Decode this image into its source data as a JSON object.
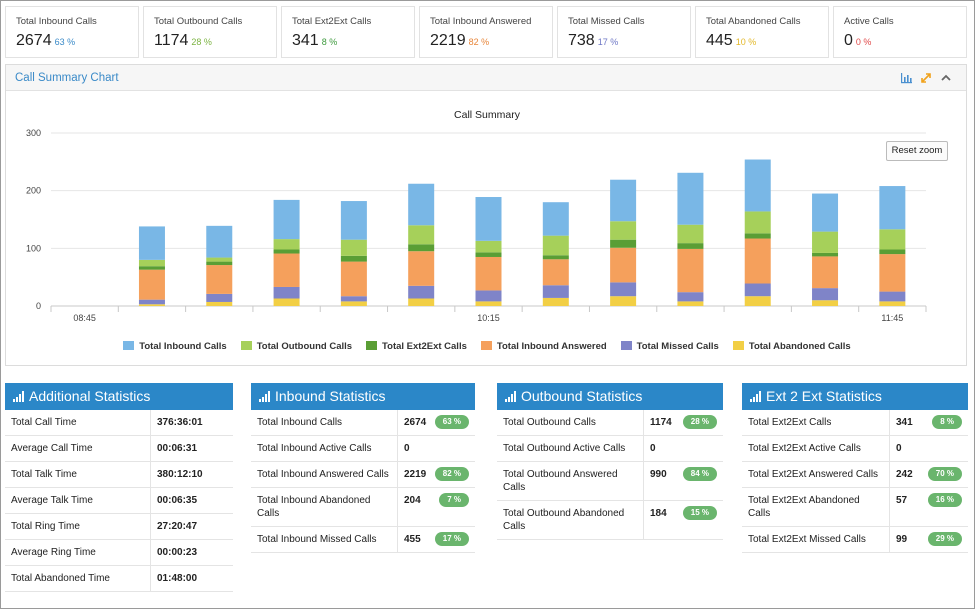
{
  "kpis": [
    {
      "title": "Total Inbound Calls",
      "value": "2674",
      "pct": "63 %",
      "color": "#3a8ac8"
    },
    {
      "title": "Total Outbound Calls",
      "value": "1174",
      "pct": "28 %",
      "color": "#7cb342"
    },
    {
      "title": "Total Ext2Ext Calls",
      "value": "341",
      "pct": "8 %",
      "color": "#3d9a3d"
    },
    {
      "title": "Total Inbound Answered",
      "value": "2219",
      "pct": "82 %",
      "color": "#e8863a"
    },
    {
      "title": "Total Missed Calls",
      "value": "738",
      "pct": "17 %",
      "color": "#6f78c6"
    },
    {
      "title": "Total Abandoned Calls",
      "value": "445",
      "pct": "10 %",
      "color": "#e3b828"
    },
    {
      "title": "Active Calls",
      "value": "0",
      "pct": "0 %",
      "color": "#e04848"
    }
  ],
  "panel": {
    "title": "Call Summary Chart",
    "reset_label": "Reset zoom",
    "tool_icons": [
      "bar-chart-icon",
      "expand-icon",
      "collapse-icon"
    ]
  },
  "chart_data": {
    "type": "bar",
    "stacked": true,
    "title": "Call Summary",
    "y_ticks": [
      "0",
      "100",
      "200",
      "300"
    ],
    "ylim": [
      0,
      300
    ],
    "x_tick_labels": [
      {
        "label": "08:45",
        "slot": 0
      },
      {
        "label": "10:15",
        "slot": 6
      },
      {
        "label": "11:45",
        "slot": 12
      }
    ],
    "categories": [
      "08:45",
      "",
      "",
      "",
      "",
      "",
      "10:15",
      "",
      "",
      "",
      "",
      "",
      "11:45"
    ],
    "series": [
      {
        "name": "Total Abandoned Calls",
        "color": "#f2cf45",
        "values": [
          0,
          3,
          7,
          13,
          8,
          13,
          8,
          14,
          17,
          8,
          17,
          10,
          8
        ]
      },
      {
        "name": "Total Missed Calls",
        "color": "#7f84c8",
        "values": [
          0,
          8,
          14,
          20,
          9,
          22,
          19,
          22,
          24,
          16,
          22,
          21,
          17
        ]
      },
      {
        "name": "Total Inbound Answered",
        "color": "#f5a05c",
        "values": [
          0,
          52,
          50,
          58,
          60,
          60,
          58,
          45,
          60,
          75,
          78,
          55,
          65
        ]
      },
      {
        "name": "Total Ext2Ext Calls",
        "color": "#5a9e35",
        "values": [
          0,
          6,
          6,
          7,
          10,
          12,
          8,
          7,
          14,
          10,
          9,
          6,
          8
        ]
      },
      {
        "name": "Total Outbound Calls",
        "color": "#a6d05a",
        "values": [
          0,
          11,
          7,
          18,
          28,
          33,
          20,
          34,
          32,
          32,
          38,
          37,
          35
        ]
      },
      {
        "name": "Total Inbound Calls",
        "color": "#79b7e6",
        "values": [
          0,
          58,
          55,
          68,
          67,
          72,
          76,
          58,
          72,
          90,
          90,
          66,
          75
        ]
      }
    ],
    "legend_order": [
      "Total Inbound Calls",
      "Total Outbound Calls",
      "Total Ext2Ext Calls",
      "Total Inbound Answered",
      "Total Missed Calls",
      "Total Abandoned Calls"
    ],
    "legend_position": "bottom",
    "grid": true
  },
  "stats": [
    {
      "title": "Additional Statistics",
      "rows": [
        {
          "label": "Total Call Time",
          "value": "376:36:01"
        },
        {
          "label": "Average Call Time",
          "value": "00:06:31"
        },
        {
          "label": "Total Talk Time",
          "value": "380:12:10"
        },
        {
          "label": "Average Talk Time",
          "value": "00:06:35"
        },
        {
          "label": "Total Ring Time",
          "value": "27:20:47"
        },
        {
          "label": "Average Ring Time",
          "value": "00:00:23"
        },
        {
          "label": "Total Abandoned Time",
          "value": "01:48:00"
        }
      ]
    },
    {
      "title": "Inbound Statistics",
      "rows": [
        {
          "label": "Total Inbound Calls",
          "value": "2674",
          "pct": "63 %"
        },
        {
          "label": "Total Inbound Active Calls",
          "value": "0"
        },
        {
          "label": "Total Inbound Answered Calls",
          "value": "2219",
          "pct": "82 %"
        },
        {
          "label": "Total Inbound Abandoned Calls",
          "value": "204",
          "pct": "7 %"
        },
        {
          "label": "Total Inbound Missed Calls",
          "value": "455",
          "pct": "17 %"
        }
      ]
    },
    {
      "title": "Outbound Statistics",
      "rows": [
        {
          "label": "Total Outbound Calls",
          "value": "1174",
          "pct": "28 %"
        },
        {
          "label": "Total Outbound Active Calls",
          "value": "0"
        },
        {
          "label": "Total Outbound Answered Calls",
          "value": "990",
          "pct": "84 %"
        },
        {
          "label": "Total Outbound Abandoned Calls",
          "value": "184",
          "pct": "15 %"
        }
      ]
    },
    {
      "title": "Ext 2 Ext Statistics",
      "rows": [
        {
          "label": "Total Ext2Ext Calls",
          "value": "341",
          "pct": "8 %"
        },
        {
          "label": "Total Ext2Ext Active Calls",
          "value": "0"
        },
        {
          "label": "Total Ext2Ext Answered Calls",
          "value": "242",
          "pct": "70 %"
        },
        {
          "label": "Total Ext2Ext Abandoned Calls",
          "value": "57",
          "pct": "16 %"
        },
        {
          "label": "Total Ext2Ext Missed Calls",
          "value": "99",
          "pct": "29 %"
        }
      ]
    }
  ]
}
